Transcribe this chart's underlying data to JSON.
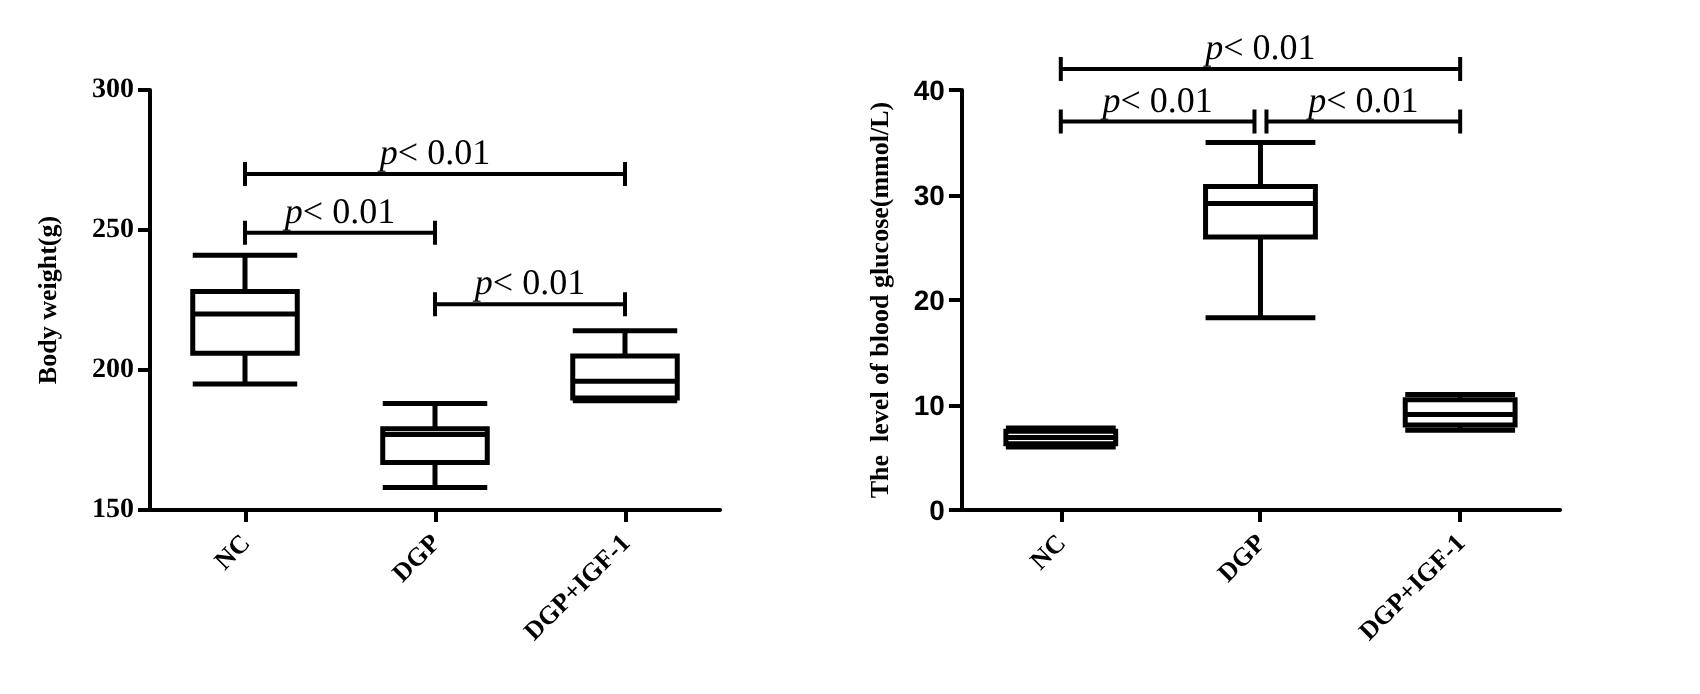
{
  "chart_data": [
    {
      "type": "box",
      "ylabel": "Body weight(g)",
      "categories": [
        "NC",
        "DGP",
        "DGP+IGF-1"
      ],
      "ylim": [
        150,
        300
      ],
      "yticks": [
        150,
        200,
        250,
        300
      ],
      "grid": false,
      "boxes": [
        {
          "low": 195,
          "q1": 206,
          "median": 220,
          "q3": 228,
          "high": 241
        },
        {
          "low": 158,
          "q1": 167,
          "median": 177,
          "q3": 179,
          "high": 188
        },
        {
          "low": 189,
          "q1": 190,
          "median": 196,
          "q3": 205,
          "high": 214
        }
      ],
      "annotations": [
        "p< 0.01",
        "p< 0.01",
        "p< 0.01"
      ]
    },
    {
      "type": "box",
      "ylabel": "The  level of blood glucose(mmol/L)",
      "categories": [
        "NC",
        "DGP",
        "DGP+IGF-1"
      ],
      "ylim": [
        0,
        40
      ],
      "yticks": [
        0,
        10,
        20,
        30,
        40
      ],
      "grid": false,
      "boxes": [
        {
          "low": 6.0,
          "q1": 6.3,
          "median": 6.9,
          "q3": 7.5,
          "high": 7.8
        },
        {
          "low": 18.3,
          "q1": 26.0,
          "median": 29.2,
          "q3": 30.8,
          "high": 35.0
        },
        {
          "low": 7.6,
          "q1": 8.1,
          "median": 9.1,
          "q3": 10.5,
          "high": 11.0
        }
      ],
      "annotations": [
        "p< 0.01",
        "p< 0.01",
        "p< 0.01"
      ]
    }
  ]
}
